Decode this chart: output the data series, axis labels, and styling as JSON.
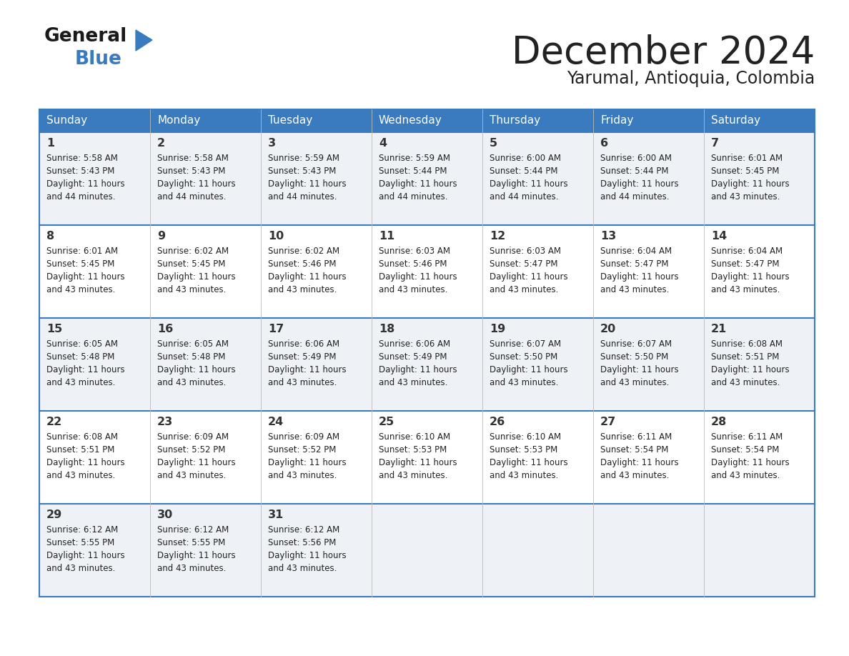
{
  "title": "December 2024",
  "subtitle": "Yarumal, Antioquia, Colombia",
  "days_of_week": [
    "Sunday",
    "Monday",
    "Tuesday",
    "Wednesday",
    "Thursday",
    "Friday",
    "Saturday"
  ],
  "header_bg": "#3a7bbf",
  "header_text": "#ffffff",
  "row_bg_odd": "#eef2f7",
  "row_bg_even": "#ffffff",
  "border_color": "#3a7bbf",
  "text_color": "#222222",
  "num_color": "#333333",
  "calendar": [
    [
      {
        "day": 1,
        "sunrise": "5:58 AM",
        "sunset": "5:43 PM",
        "daylight": "11 hours and 44 minutes."
      },
      {
        "day": 2,
        "sunrise": "5:58 AM",
        "sunset": "5:43 PM",
        "daylight": "11 hours and 44 minutes."
      },
      {
        "day": 3,
        "sunrise": "5:59 AM",
        "sunset": "5:43 PM",
        "daylight": "11 hours and 44 minutes."
      },
      {
        "day": 4,
        "sunrise": "5:59 AM",
        "sunset": "5:44 PM",
        "daylight": "11 hours and 44 minutes."
      },
      {
        "day": 5,
        "sunrise": "6:00 AM",
        "sunset": "5:44 PM",
        "daylight": "11 hours and 44 minutes."
      },
      {
        "day": 6,
        "sunrise": "6:00 AM",
        "sunset": "5:44 PM",
        "daylight": "11 hours and 44 minutes."
      },
      {
        "day": 7,
        "sunrise": "6:01 AM",
        "sunset": "5:45 PM",
        "daylight": "11 hours and 43 minutes."
      }
    ],
    [
      {
        "day": 8,
        "sunrise": "6:01 AM",
        "sunset": "5:45 PM",
        "daylight": "11 hours and 43 minutes."
      },
      {
        "day": 9,
        "sunrise": "6:02 AM",
        "sunset": "5:45 PM",
        "daylight": "11 hours and 43 minutes."
      },
      {
        "day": 10,
        "sunrise": "6:02 AM",
        "sunset": "5:46 PM",
        "daylight": "11 hours and 43 minutes."
      },
      {
        "day": 11,
        "sunrise": "6:03 AM",
        "sunset": "5:46 PM",
        "daylight": "11 hours and 43 minutes."
      },
      {
        "day": 12,
        "sunrise": "6:03 AM",
        "sunset": "5:47 PM",
        "daylight": "11 hours and 43 minutes."
      },
      {
        "day": 13,
        "sunrise": "6:04 AM",
        "sunset": "5:47 PM",
        "daylight": "11 hours and 43 minutes."
      },
      {
        "day": 14,
        "sunrise": "6:04 AM",
        "sunset": "5:47 PM",
        "daylight": "11 hours and 43 minutes."
      }
    ],
    [
      {
        "day": 15,
        "sunrise": "6:05 AM",
        "sunset": "5:48 PM",
        "daylight": "11 hours and 43 minutes."
      },
      {
        "day": 16,
        "sunrise": "6:05 AM",
        "sunset": "5:48 PM",
        "daylight": "11 hours and 43 minutes."
      },
      {
        "day": 17,
        "sunrise": "6:06 AM",
        "sunset": "5:49 PM",
        "daylight": "11 hours and 43 minutes."
      },
      {
        "day": 18,
        "sunrise": "6:06 AM",
        "sunset": "5:49 PM",
        "daylight": "11 hours and 43 minutes."
      },
      {
        "day": 19,
        "sunrise": "6:07 AM",
        "sunset": "5:50 PM",
        "daylight": "11 hours and 43 minutes."
      },
      {
        "day": 20,
        "sunrise": "6:07 AM",
        "sunset": "5:50 PM",
        "daylight": "11 hours and 43 minutes."
      },
      {
        "day": 21,
        "sunrise": "6:08 AM",
        "sunset": "5:51 PM",
        "daylight": "11 hours and 43 minutes."
      }
    ],
    [
      {
        "day": 22,
        "sunrise": "6:08 AM",
        "sunset": "5:51 PM",
        "daylight": "11 hours and 43 minutes."
      },
      {
        "day": 23,
        "sunrise": "6:09 AM",
        "sunset": "5:52 PM",
        "daylight": "11 hours and 43 minutes."
      },
      {
        "day": 24,
        "sunrise": "6:09 AM",
        "sunset": "5:52 PM",
        "daylight": "11 hours and 43 minutes."
      },
      {
        "day": 25,
        "sunrise": "6:10 AM",
        "sunset": "5:53 PM",
        "daylight": "11 hours and 43 minutes."
      },
      {
        "day": 26,
        "sunrise": "6:10 AM",
        "sunset": "5:53 PM",
        "daylight": "11 hours and 43 minutes."
      },
      {
        "day": 27,
        "sunrise": "6:11 AM",
        "sunset": "5:54 PM",
        "daylight": "11 hours and 43 minutes."
      },
      {
        "day": 28,
        "sunrise": "6:11 AM",
        "sunset": "5:54 PM",
        "daylight": "11 hours and 43 minutes."
      }
    ],
    [
      {
        "day": 29,
        "sunrise": "6:12 AM",
        "sunset": "5:55 PM",
        "daylight": "11 hours and 43 minutes."
      },
      {
        "day": 30,
        "sunrise": "6:12 AM",
        "sunset": "5:55 PM",
        "daylight": "11 hours and 43 minutes."
      },
      {
        "day": 31,
        "sunrise": "6:12 AM",
        "sunset": "5:56 PM",
        "daylight": "11 hours and 43 minutes."
      },
      null,
      null,
      null,
      null
    ]
  ],
  "logo_text_general": "General",
  "logo_text_blue": "Blue",
  "logo_color_general": "#1a1a1a",
  "logo_color_blue": "#3a7bbf",
  "logo_triangle_color": "#3a7bbf"
}
